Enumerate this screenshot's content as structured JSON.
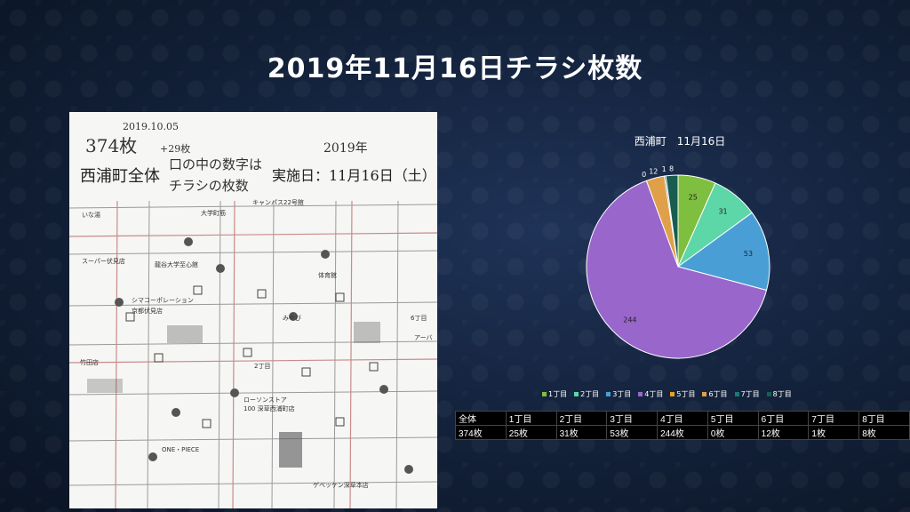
{
  "slide": {
    "title": "2019年11月16日チラシ枚数"
  },
  "map_image": {
    "handwritten_date": "2019.10.05",
    "handwritten_count": "374枚",
    "handwritten_plus": "+29枚",
    "handwritten_year": "2019年",
    "handwritten_note_1": "口の中の数字は",
    "handwritten_note_2": "チラシの枚数",
    "heading": "西浦町全体",
    "date_text": "実施日：11月16日（土）",
    "labels": [
      "キャンパス22号館",
      "大学町筋",
      "いな湯",
      "スーパー伏見店",
      "龍谷大学至心館",
      "体育館",
      "シマコーポレーション",
      "京都伏見店",
      "みやび",
      "2丁目",
      "6丁目",
      "竹田店",
      "ローソンストア",
      "100 深草西浦町店",
      "ONE・PIECE",
      "ゲベッケン深草本店",
      "アーバ"
    ]
  },
  "chart_data": {
    "type": "pie",
    "title": "西浦町　11月16日",
    "categories": [
      "1丁目",
      "2丁目",
      "3丁目",
      "4丁目",
      "5丁目",
      "6丁目",
      "7丁目",
      "8丁目"
    ],
    "values": [
      25,
      31,
      53,
      244,
      0,
      12,
      1,
      8
    ],
    "colors": [
      "#7fbf3f",
      "#5dd6a8",
      "#4a9ed6",
      "#9966cc",
      "#e8a020",
      "#e0a04a",
      "#1a7a72",
      "#1a5c52"
    ],
    "legend_position": "bottom"
  },
  "summary_table": {
    "headers": [
      "全体",
      "1丁目",
      "2丁目",
      "3丁目",
      "4丁目",
      "5丁目",
      "6丁目",
      "7丁目",
      "8丁目"
    ],
    "values": [
      "374枚",
      "25枚",
      "31枚",
      "53枚",
      "244枚",
      "0枚",
      "12枚",
      "1枚",
      "8枚"
    ]
  }
}
